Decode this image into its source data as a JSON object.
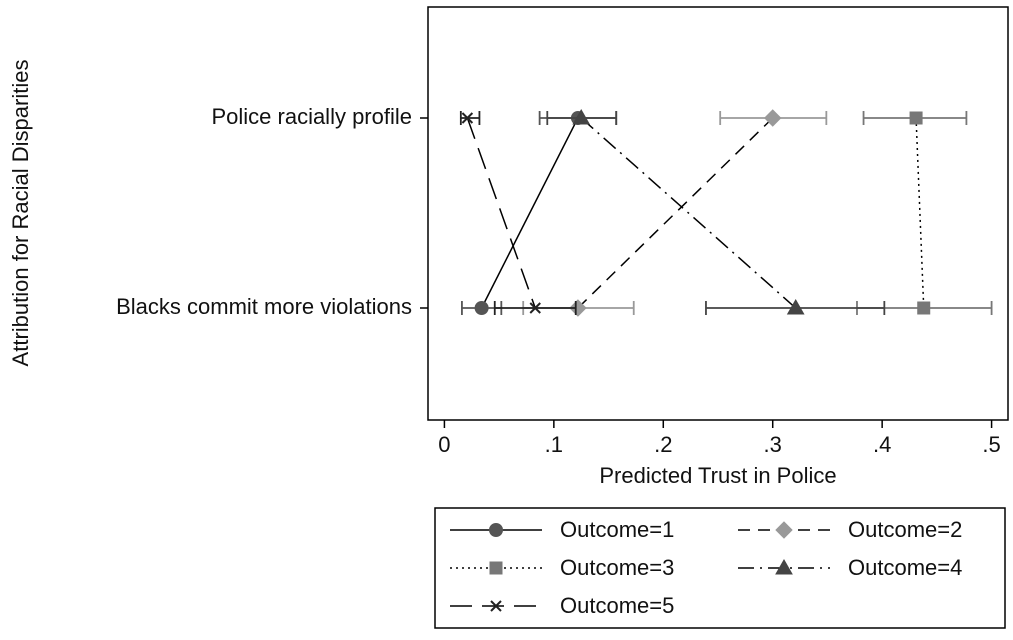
{
  "chart_data": {
    "type": "dot",
    "xlabel": "Predicted Trust in Police",
    "ylabel": "Attribution for Racial Disparities",
    "categories": [
      "Police racially profile",
      "Blacks commit more violations"
    ],
    "xlim": [
      -0.015,
      0.515
    ],
    "xticks": [
      0,
      {
        "value": 0.1,
        "label": ".1"
      },
      {
        "value": 0.2,
        "label": ".2"
      },
      {
        "value": 0.3,
        "label": ".3"
      },
      {
        "value": 0.4,
        "label": ".4"
      },
      {
        "value": 0.5,
        "label": ".5"
      }
    ],
    "series": [
      {
        "name": "Outcome=1",
        "color": "#555555",
        "marker": "circle",
        "dash": "solid",
        "values": [
          0.122,
          0.034
        ],
        "lower": [
          0.087,
          0.016
        ],
        "upper": [
          0.157,
          0.052
        ]
      },
      {
        "name": "Outcome=2",
        "color": "#999999",
        "marker": "diamond",
        "dash": "dashed",
        "values": [
          0.3,
          0.122
        ],
        "lower": [
          0.252,
          0.072
        ],
        "upper": [
          0.349,
          0.173
        ]
      },
      {
        "name": "Outcome=3",
        "color": "#777777",
        "marker": "square",
        "dash": "dotted",
        "values": [
          0.431,
          0.438
        ],
        "lower": [
          0.383,
          0.377
        ],
        "upper": [
          0.477,
          0.5
        ]
      },
      {
        "name": "Outcome=4",
        "color": "#444444",
        "marker": "triangle",
        "dash": "dashdot",
        "values": [
          0.125,
          0.321
        ],
        "lower": [
          0.094,
          0.239
        ],
        "upper": [
          0.157,
          0.402
        ]
      },
      {
        "name": "Outcome=5",
        "color": "#222222",
        "marker": "x",
        "dash": "longdash",
        "values": [
          0.021,
          0.083
        ],
        "lower": [
          0.015,
          0.046
        ],
        "upper": [
          0.032,
          0.12
        ]
      }
    ]
  }
}
